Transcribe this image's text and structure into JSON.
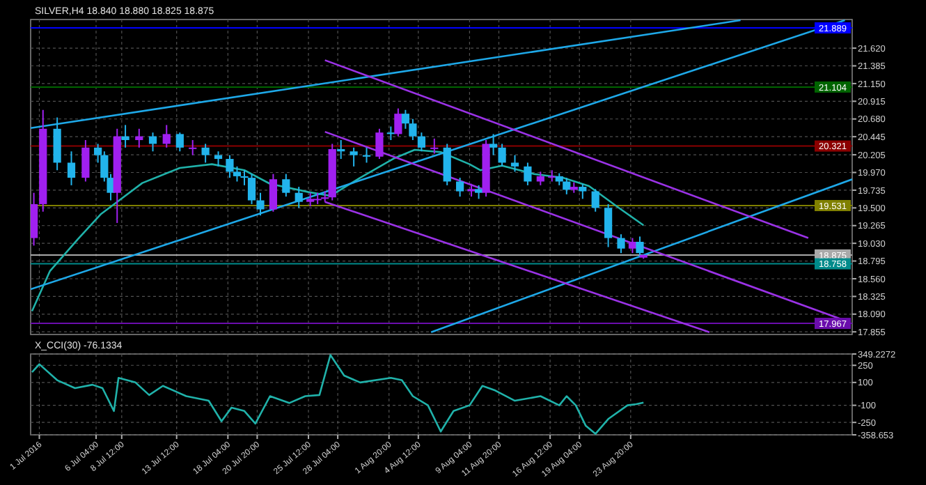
{
  "chart_data": [
    {
      "type": "candlestick",
      "title": "SILVER,H4 18.840 18.880 18.825 18.875",
      "grid": true,
      "tick_labels": "y",
      "xlim": [
        "2016-06-30T05:00",
        "2016-09-13T00:00"
      ],
      "ylim": [
        17.82,
        22.0
      ],
      "xticks": [
        {
          "value": "2016-07-01T00:00",
          "label": null
        },
        {
          "value": "2016-07-06T04:00",
          "label": null
        },
        {
          "value": "2016-07-08T12:00",
          "label": null
        },
        {
          "value": "2016-07-13T12:00",
          "label": null
        },
        {
          "value": "2016-07-18T04:00",
          "label": null
        },
        {
          "value": "2016-07-20T20:00",
          "label": null
        },
        {
          "value": "2016-07-25T12:00",
          "label": null
        },
        {
          "value": "2016-07-28T04:00",
          "label": null
        },
        {
          "value": "2016-08-01T20:00",
          "label": null
        },
        {
          "value": "2016-08-04T12:00",
          "label": null
        },
        {
          "value": "2016-08-09T04:00",
          "label": null
        },
        {
          "value": "2016-08-11T20:00",
          "label": null
        },
        {
          "value": "2016-08-16T12:00",
          "label": null
        },
        {
          "value": "2016-08-19T04:00",
          "label": null
        },
        {
          "value": "2016-08-23T20:00",
          "label": null
        }
      ],
      "yticks": [
        {
          "value": 21.62,
          "label": "21.620"
        },
        21.385,
        {
          "value": 21.15,
          "label": "21.150"
        },
        20.915,
        {
          "value": 20.68,
          "label": "20.680"
        },
        20.445,
        20.205,
        {
          "value": 19.97,
          "label": "19.970"
        },
        19.735,
        {
          "value": 19.5,
          "label": "19.500"
        },
        19.265,
        {
          "value": 19.03,
          "label": "19.030"
        },
        18.795,
        {
          "value": 18.56,
          "label": "18.560"
        },
        18.325,
        {
          "value": 18.09,
          "label": "18.090"
        },
        17.855
      ],
      "x": [
        "2016-06-30T12:00",
        "2016-07-01T08:00",
        "2016-07-02T15:00",
        "2016-07-03T22:00",
        "2016-07-05T05:00",
        "2016-07-06T08:00",
        "2016-07-06T22:00",
        "2016-07-07T12:00",
        "2016-07-08T02:00",
        "2016-07-08T20:00",
        "2016-07-10T02:00",
        "2016-07-11T08:00",
        "2016-07-12T14:00",
        "2016-07-13T19:00",
        "2016-07-14T23:00",
        "2016-07-16T03:00",
        "2016-07-17T07:00",
        "2016-07-18T08:00",
        "2016-07-19T00:00",
        "2016-07-19T16:00",
        "2016-07-20T08:00",
        "2016-07-21T03:00",
        "2016-07-22T07:00",
        "2016-07-23T11:00",
        "2016-07-24T15:00",
        "2016-07-25T16:00",
        "2016-07-26T08:00",
        "2016-07-27T00:00",
        "2016-07-27T16:00",
        "2016-07-28T11:00",
        "2016-07-29T15:00",
        "2016-07-30T19:00",
        "2016-07-31T23:00",
        "2016-08-02T00:00",
        "2016-08-02T16:00",
        "2016-08-03T08:00",
        "2016-08-04T00:00",
        "2016-08-04T19:00",
        "2016-08-05T23:00",
        "2016-08-07T03:00",
        "2016-08-08T07:00",
        "2016-08-09T08:00",
        "2016-08-10T00:00",
        "2016-08-10T16:00",
        "2016-08-11T08:00",
        "2016-08-12T03:00",
        "2016-08-13T07:00",
        "2016-08-14T11:00",
        "2016-08-15T15:00",
        "2016-08-16T16:00",
        "2016-08-17T08:00",
        "2016-08-18T00:00",
        "2016-08-18T16:00",
        "2016-08-19T11:00",
        "2016-08-20T15:00",
        "2016-08-21T19:00",
        "2016-08-22T23:00",
        "2016-08-24T00:00",
        "2016-08-24T16:00",
        "2016-08-25T00:00"
      ],
      "ohlc": [
        [
          19.1,
          19.7,
          19.0,
          19.55
        ],
        [
          19.55,
          20.8,
          19.45,
          20.55
        ],
        [
          20.55,
          20.7,
          20.0,
          20.1
        ],
        [
          20.1,
          20.25,
          19.8,
          19.9
        ],
        [
          19.9,
          20.4,
          19.85,
          20.3
        ],
        [
          20.3,
          20.35,
          20.1,
          20.2
        ],
        [
          20.2,
          20.25,
          19.85,
          19.9
        ],
        [
          19.9,
          19.95,
          19.6,
          19.7
        ],
        [
          19.7,
          20.55,
          19.3,
          20.45
        ],
        [
          20.45,
          20.6,
          20.3,
          20.4
        ],
        [
          20.4,
          20.55,
          20.3,
          20.45
        ],
        [
          20.45,
          20.5,
          20.25,
          20.35
        ],
        [
          20.35,
          20.6,
          20.3,
          20.48
        ],
        [
          20.48,
          20.5,
          20.25,
          20.3
        ],
        [
          20.3,
          20.4,
          20.2,
          20.3
        ],
        [
          20.3,
          20.35,
          20.1,
          20.2
        ],
        [
          20.2,
          20.25,
          20.05,
          20.15
        ],
        [
          20.15,
          20.2,
          19.9,
          19.98
        ],
        [
          19.98,
          20.05,
          19.85,
          19.92
        ],
        [
          19.92,
          20.0,
          19.8,
          19.9
        ],
        [
          19.9,
          19.95,
          19.55,
          19.6
        ],
        [
          19.6,
          19.7,
          19.4,
          19.48
        ],
        [
          19.48,
          19.95,
          19.45,
          19.88
        ],
        [
          19.88,
          19.95,
          19.65,
          19.7
        ],
        [
          19.7,
          19.78,
          19.5,
          19.58
        ],
        [
          19.58,
          19.7,
          19.52,
          19.62
        ],
        [
          19.62,
          19.7,
          19.55,
          19.62
        ],
        [
          19.62,
          19.72,
          19.58,
          19.64
        ],
        [
          19.64,
          20.35,
          19.6,
          20.28
        ],
        [
          20.28,
          20.4,
          20.15,
          20.25
        ],
        [
          20.25,
          20.3,
          20.05,
          20.2
        ],
        [
          20.2,
          20.3,
          20.1,
          20.18
        ],
        [
          20.18,
          20.55,
          20.15,
          20.5
        ],
        [
          20.5,
          20.58,
          20.4,
          20.48
        ],
        [
          20.48,
          20.82,
          20.45,
          20.75
        ],
        [
          20.75,
          20.8,
          20.55,
          20.62
        ],
        [
          20.62,
          20.68,
          20.4,
          20.45
        ],
        [
          20.45,
          20.5,
          20.25,
          20.3
        ],
        [
          20.3,
          20.42,
          20.22,
          20.3
        ],
        [
          20.3,
          20.35,
          19.8,
          19.85
        ],
        [
          19.85,
          19.9,
          19.65,
          19.72
        ],
        [
          19.72,
          19.82,
          19.65,
          19.75
        ],
        [
          19.75,
          19.8,
          19.62,
          19.7
        ],
        [
          19.7,
          20.4,
          19.65,
          20.35
        ],
        [
          20.35,
          20.48,
          20.2,
          20.3
        ],
        [
          20.3,
          20.35,
          20.05,
          20.1
        ],
        [
          20.1,
          20.2,
          19.98,
          20.05
        ],
        [
          20.05,
          20.1,
          19.8,
          19.85
        ],
        [
          19.85,
          19.98,
          19.8,
          19.92
        ],
        [
          19.92,
          20.0,
          19.85,
          19.92
        ],
        [
          19.92,
          19.96,
          19.8,
          19.85
        ],
        [
          19.85,
          19.9,
          19.68,
          19.74
        ],
        [
          19.74,
          19.84,
          19.7,
          19.78
        ],
        [
          19.78,
          19.82,
          19.62,
          19.72
        ],
        [
          19.72,
          19.75,
          19.45,
          19.5
        ],
        [
          19.5,
          19.55,
          18.98,
          19.1
        ],
        [
          19.1,
          19.15,
          18.9,
          18.96
        ],
        [
          18.96,
          19.1,
          18.9,
          19.05
        ],
        [
          19.05,
          19.12,
          18.85,
          18.9
        ],
        [
          18.84,
          18.88,
          18.825,
          18.875
        ]
      ],
      "series": [
        {
          "type": "line",
          "color": "#20b2aa",
          "x": [
            "2016-06-30T08:00",
            "2016-07-01T23:00",
            "2016-07-04T13:00",
            "2016-07-06T15:00",
            "2016-07-08T02:00",
            "2016-07-10T09:00",
            "2016-07-13T19:00",
            "2016-07-16T17:00",
            "2016-07-19T16:00",
            "2016-07-22T00:00",
            "2016-07-25T12:00",
            "2016-07-27T12:00",
            "2016-07-30T05:00",
            "2016-08-02T08:00",
            "2016-08-04T04:00",
            "2016-08-06T13:00",
            "2016-08-09T04:00",
            "2016-08-10T04:00",
            "2016-08-12T03:00",
            "2016-08-15T01:00",
            "2016-08-17T16:00",
            "2016-08-20T01:00",
            "2016-08-22T16:00",
            "2016-08-25T00:00"
          ],
          "values": [
            18.13,
            18.66,
            19.09,
            19.42,
            19.58,
            19.83,
            20.03,
            20.08,
            20.0,
            19.82,
            19.71,
            19.66,
            19.9,
            20.16,
            20.27,
            20.24,
            20.08,
            20.0,
            20.06,
            19.95,
            19.9,
            19.79,
            19.51,
            19.27
          ]
        },
        {
          "type": "line",
          "color": "#1ea8e8",
          "x": [
            "2016-06-30T05:00",
            "2016-09-02T20:00"
          ],
          "values": [
            20.56,
            21.99
          ]
        },
        {
          "type": "line",
          "color": "#1ea8e8",
          "x": [
            "2016-06-30T05:00",
            "2016-09-12T08:00"
          ],
          "values": [
            18.42,
            21.99
          ]
        },
        {
          "type": "line",
          "color": "#1ea8e8",
          "x": [
            "2016-08-05T16:00",
            "2016-09-13T00:00"
          ],
          "values": [
            17.85,
            19.88
          ]
        },
        {
          "type": "line",
          "color": "#9a32e6",
          "x": [
            "2016-07-27T00:00",
            "2016-09-09T00:00"
          ],
          "values": [
            21.46,
            19.1
          ]
        },
        {
          "type": "line",
          "color": "#9a32e6",
          "x": [
            "2016-07-27T00:00",
            "2016-09-12T20:00"
          ],
          "values": [
            20.51,
            17.98
          ]
        },
        {
          "type": "line",
          "color": "#9a32e6",
          "x": [
            "2016-07-27T00:00",
            "2016-08-31T00:00"
          ],
          "values": [
            19.58,
            17.85
          ]
        }
      ],
      "ref_lines": [
        {
          "axis": "y",
          "value": 21.889,
          "label": "21.889",
          "color": "#0000ff"
        },
        {
          "axis": "y",
          "value": 21.104,
          "label": "21.104",
          "color": "#006400"
        },
        {
          "axis": "y",
          "value": 20.321,
          "label": "20.321",
          "color": "#8b0000"
        },
        {
          "axis": "y",
          "value": 19.531,
          "label": "19.531",
          "color": "#808000"
        },
        {
          "axis": "y",
          "value": 18.875,
          "label": "18.875",
          "color": "#a9a9a9"
        },
        {
          "axis": "y",
          "value": 18.758,
          "label": "18.758",
          "color": "#008b8b"
        },
        {
          "axis": "y",
          "value": 17.967,
          "label": "17.967",
          "color": "#6a0dad"
        }
      ]
    },
    {
      "type": "line",
      "title": "X_CCI(30) -76.1334",
      "grid": true,
      "xlim": [
        "2016-06-30T05:00",
        "2016-09-13T00:00"
      ],
      "ylim": [
        -358.653,
        349.2272
      ],
      "xticks": [
        {
          "value": "2016-07-01T00:00",
          "label": "1 Jul 2016"
        },
        {
          "value": "2016-07-06T04:00",
          "label": "6 Jul 04:00"
        },
        {
          "value": "2016-07-08T12:00",
          "label": "8 Jul 12:00"
        },
        {
          "value": "2016-07-13T12:00",
          "label": "13 Jul 12:00"
        },
        {
          "value": "2016-07-18T04:00",
          "label": "18 Jul 04:00"
        },
        {
          "value": "2016-07-20T20:00",
          "label": "20 Jul 20:00"
        },
        {
          "value": "2016-07-25T12:00",
          "label": "25 Jul 12:00"
        },
        {
          "value": "2016-07-28T04:00",
          "label": "28 Jul 04:00"
        },
        {
          "value": "2016-08-01T20:00",
          "label": "1 Aug 20:00"
        },
        {
          "value": "2016-08-04T12:00",
          "label": "4 Aug 12:00"
        },
        {
          "value": "2016-08-09T04:00",
          "label": "9 Aug 04:00"
        },
        {
          "value": "2016-08-11T20:00",
          "label": "11 Aug 20:00"
        },
        {
          "value": "2016-08-16T12:00",
          "label": "16 Aug 12:00"
        },
        {
          "value": "2016-08-19T04:00",
          "label": "19 Aug 04:00"
        },
        {
          "value": "2016-08-23T20:00",
          "label": "23 Aug 20:00"
        }
      ],
      "yticks": [
        349.2272,
        250,
        100,
        -100,
        -250,
        -358.653
      ],
      "series": [
        {
          "color": "#20b2aa",
          "x": [
            "2016-06-30T08:00",
            "2016-07-01T00:00",
            "2016-07-02T15:00",
            "2016-07-04T06:00",
            "2016-07-05T20:00",
            "2016-07-06T18:00",
            "2016-07-07T19:00",
            "2016-07-08T05:00",
            "2016-07-09T18:00",
            "2016-07-11T00:00",
            "2016-07-12T06:00",
            "2016-07-14T09:00",
            "2016-07-16T10:00",
            "2016-07-17T14:00",
            "2016-07-18T12:00",
            "2016-07-19T16:00",
            "2016-07-20T16:00",
            "2016-07-22T00:00",
            "2016-07-23T18:00",
            "2016-07-25T05:00",
            "2016-07-26T12:00",
            "2016-07-27T12:00",
            "2016-07-28T18:00",
            "2016-07-30T05:00",
            "2016-08-02T00:00",
            "2016-08-03T00:00",
            "2016-08-04T00:00",
            "2016-08-05T09:00",
            "2016-08-06T13:00",
            "2016-08-07T17:00",
            "2016-08-09T04:00",
            "2016-08-10T08:00",
            "2016-08-11T12:00",
            "2016-08-13T07:00",
            "2016-08-15T15:00",
            "2016-08-17T08:00",
            "2016-08-18T00:00",
            "2016-08-18T20:00",
            "2016-08-19T18:00",
            "2016-08-20T15:00",
            "2016-08-21T19:00",
            "2016-08-23T13:00",
            "2016-08-24T08:00",
            "2016-08-25T00:00"
          ],
          "values": [
            190,
            260,
            120,
            50,
            80,
            50,
            -150,
            140,
            100,
            -10,
            70,
            -20,
            -60,
            -240,
            -120,
            -150,
            -260,
            -20,
            -80,
            -20,
            -10,
            340,
            160,
            100,
            140,
            120,
            -20,
            -100,
            -330,
            -150,
            -100,
            70,
            30,
            -60,
            -20,
            -100,
            -20,
            -100,
            -280,
            -350,
            -220,
            -100,
            -90,
            -76.1334
          ]
        }
      ]
    }
  ]
}
